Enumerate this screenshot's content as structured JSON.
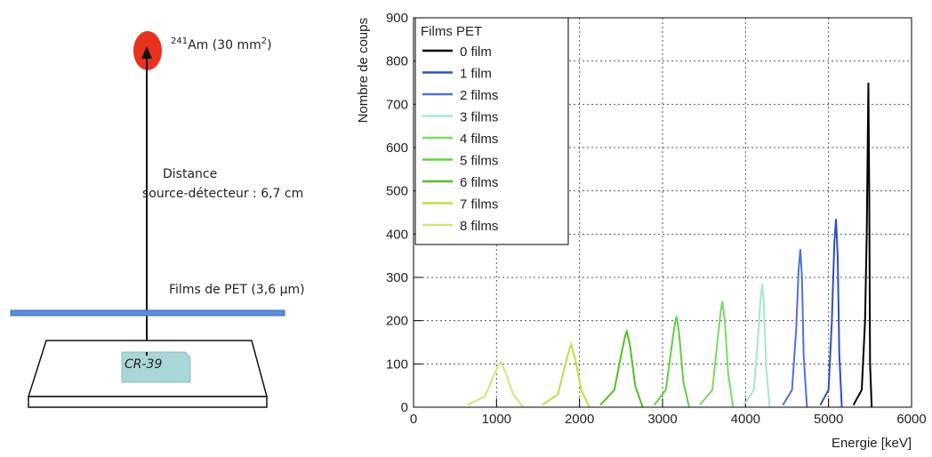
{
  "diagram": {
    "source_iso": "241",
    "source_label": "Am (30 mm",
    "source_exp": "2",
    "source_close": ")",
    "distance_1": "Distance",
    "distance_2": "source-détecteur : 6,7 cm",
    "films": "Films de PET (3,6 µm)",
    "detector": "CR-39"
  },
  "chart_data": {
    "type": "line",
    "xlabel": "Energie [keV]",
    "ylabel": "Nombre de coups",
    "legend_title": "Films PET",
    "xlim": [
      0,
      6000
    ],
    "xticks": [
      0,
      1000,
      2000,
      3000,
      4000,
      5000,
      6000
    ],
    "ylim": [
      0,
      900
    ],
    "yticks": [
      0,
      100,
      200,
      300,
      400,
      500,
      600,
      700,
      800,
      900
    ],
    "grid": true,
    "legend": "upper left",
    "series": [
      {
        "name": "0 film",
        "color": "#000000",
        "x": [
          5300,
          5400,
          5440,
          5460,
          5480,
          5490,
          5500,
          5520
        ],
        "values": [
          5,
          40,
          200,
          400,
          750,
          500,
          100,
          0
        ]
      },
      {
        "name": "1 film",
        "color": "#2f4fc4",
        "x": [
          4900,
          5000,
          5040,
          5070,
          5090,
          5110,
          5130,
          5160
        ],
        "values": [
          5,
          40,
          200,
          380,
          435,
          350,
          120,
          0
        ]
      },
      {
        "name": "2 films",
        "color": "#5272cf",
        "x": [
          4450,
          4560,
          4610,
          4640,
          4660,
          4680,
          4700,
          4740
        ],
        "values": [
          5,
          40,
          180,
          320,
          365,
          300,
          120,
          0
        ]
      },
      {
        "name": "3 films",
        "color": "#a4e8cc",
        "x": [
          3980,
          4100,
          4150,
          4180,
          4200,
          4220,
          4250,
          4290
        ],
        "values": [
          5,
          40,
          160,
          250,
          285,
          240,
          90,
          0
        ]
      },
      {
        "name": "4 films",
        "color": "#78da66",
        "x": [
          3450,
          3600,
          3660,
          3700,
          3720,
          3750,
          3790,
          3850
        ],
        "values": [
          5,
          40,
          150,
          220,
          245,
          200,
          80,
          0
        ]
      },
      {
        "name": "5 films",
        "color": "#62d044",
        "x": [
          2900,
          3040,
          3110,
          3150,
          3170,
          3200,
          3250,
          3320
        ],
        "values": [
          5,
          40,
          140,
          195,
          210,
          170,
          60,
          0
        ]
      },
      {
        "name": "6 films",
        "color": "#52c024",
        "x": [
          2250,
          2420,
          2500,
          2550,
          2570,
          2610,
          2670,
          2760
        ],
        "values": [
          5,
          40,
          120,
          165,
          175,
          140,
          50,
          0
        ]
      },
      {
        "name": "7 films",
        "color": "#bce044",
        "x": [
          1550,
          1740,
          1830,
          1880,
          1900,
          1950,
          2020,
          2120
        ],
        "values": [
          5,
          30,
          100,
          135,
          145,
          110,
          40,
          0
        ]
      },
      {
        "name": "8 films",
        "color": "#cce87c",
        "x": [
          650,
          860,
          970,
          1030,
          1050,
          1110,
          1200,
          1320
        ],
        "values": [
          5,
          25,
          75,
          100,
          105,
          80,
          30,
          0
        ]
      }
    ]
  }
}
